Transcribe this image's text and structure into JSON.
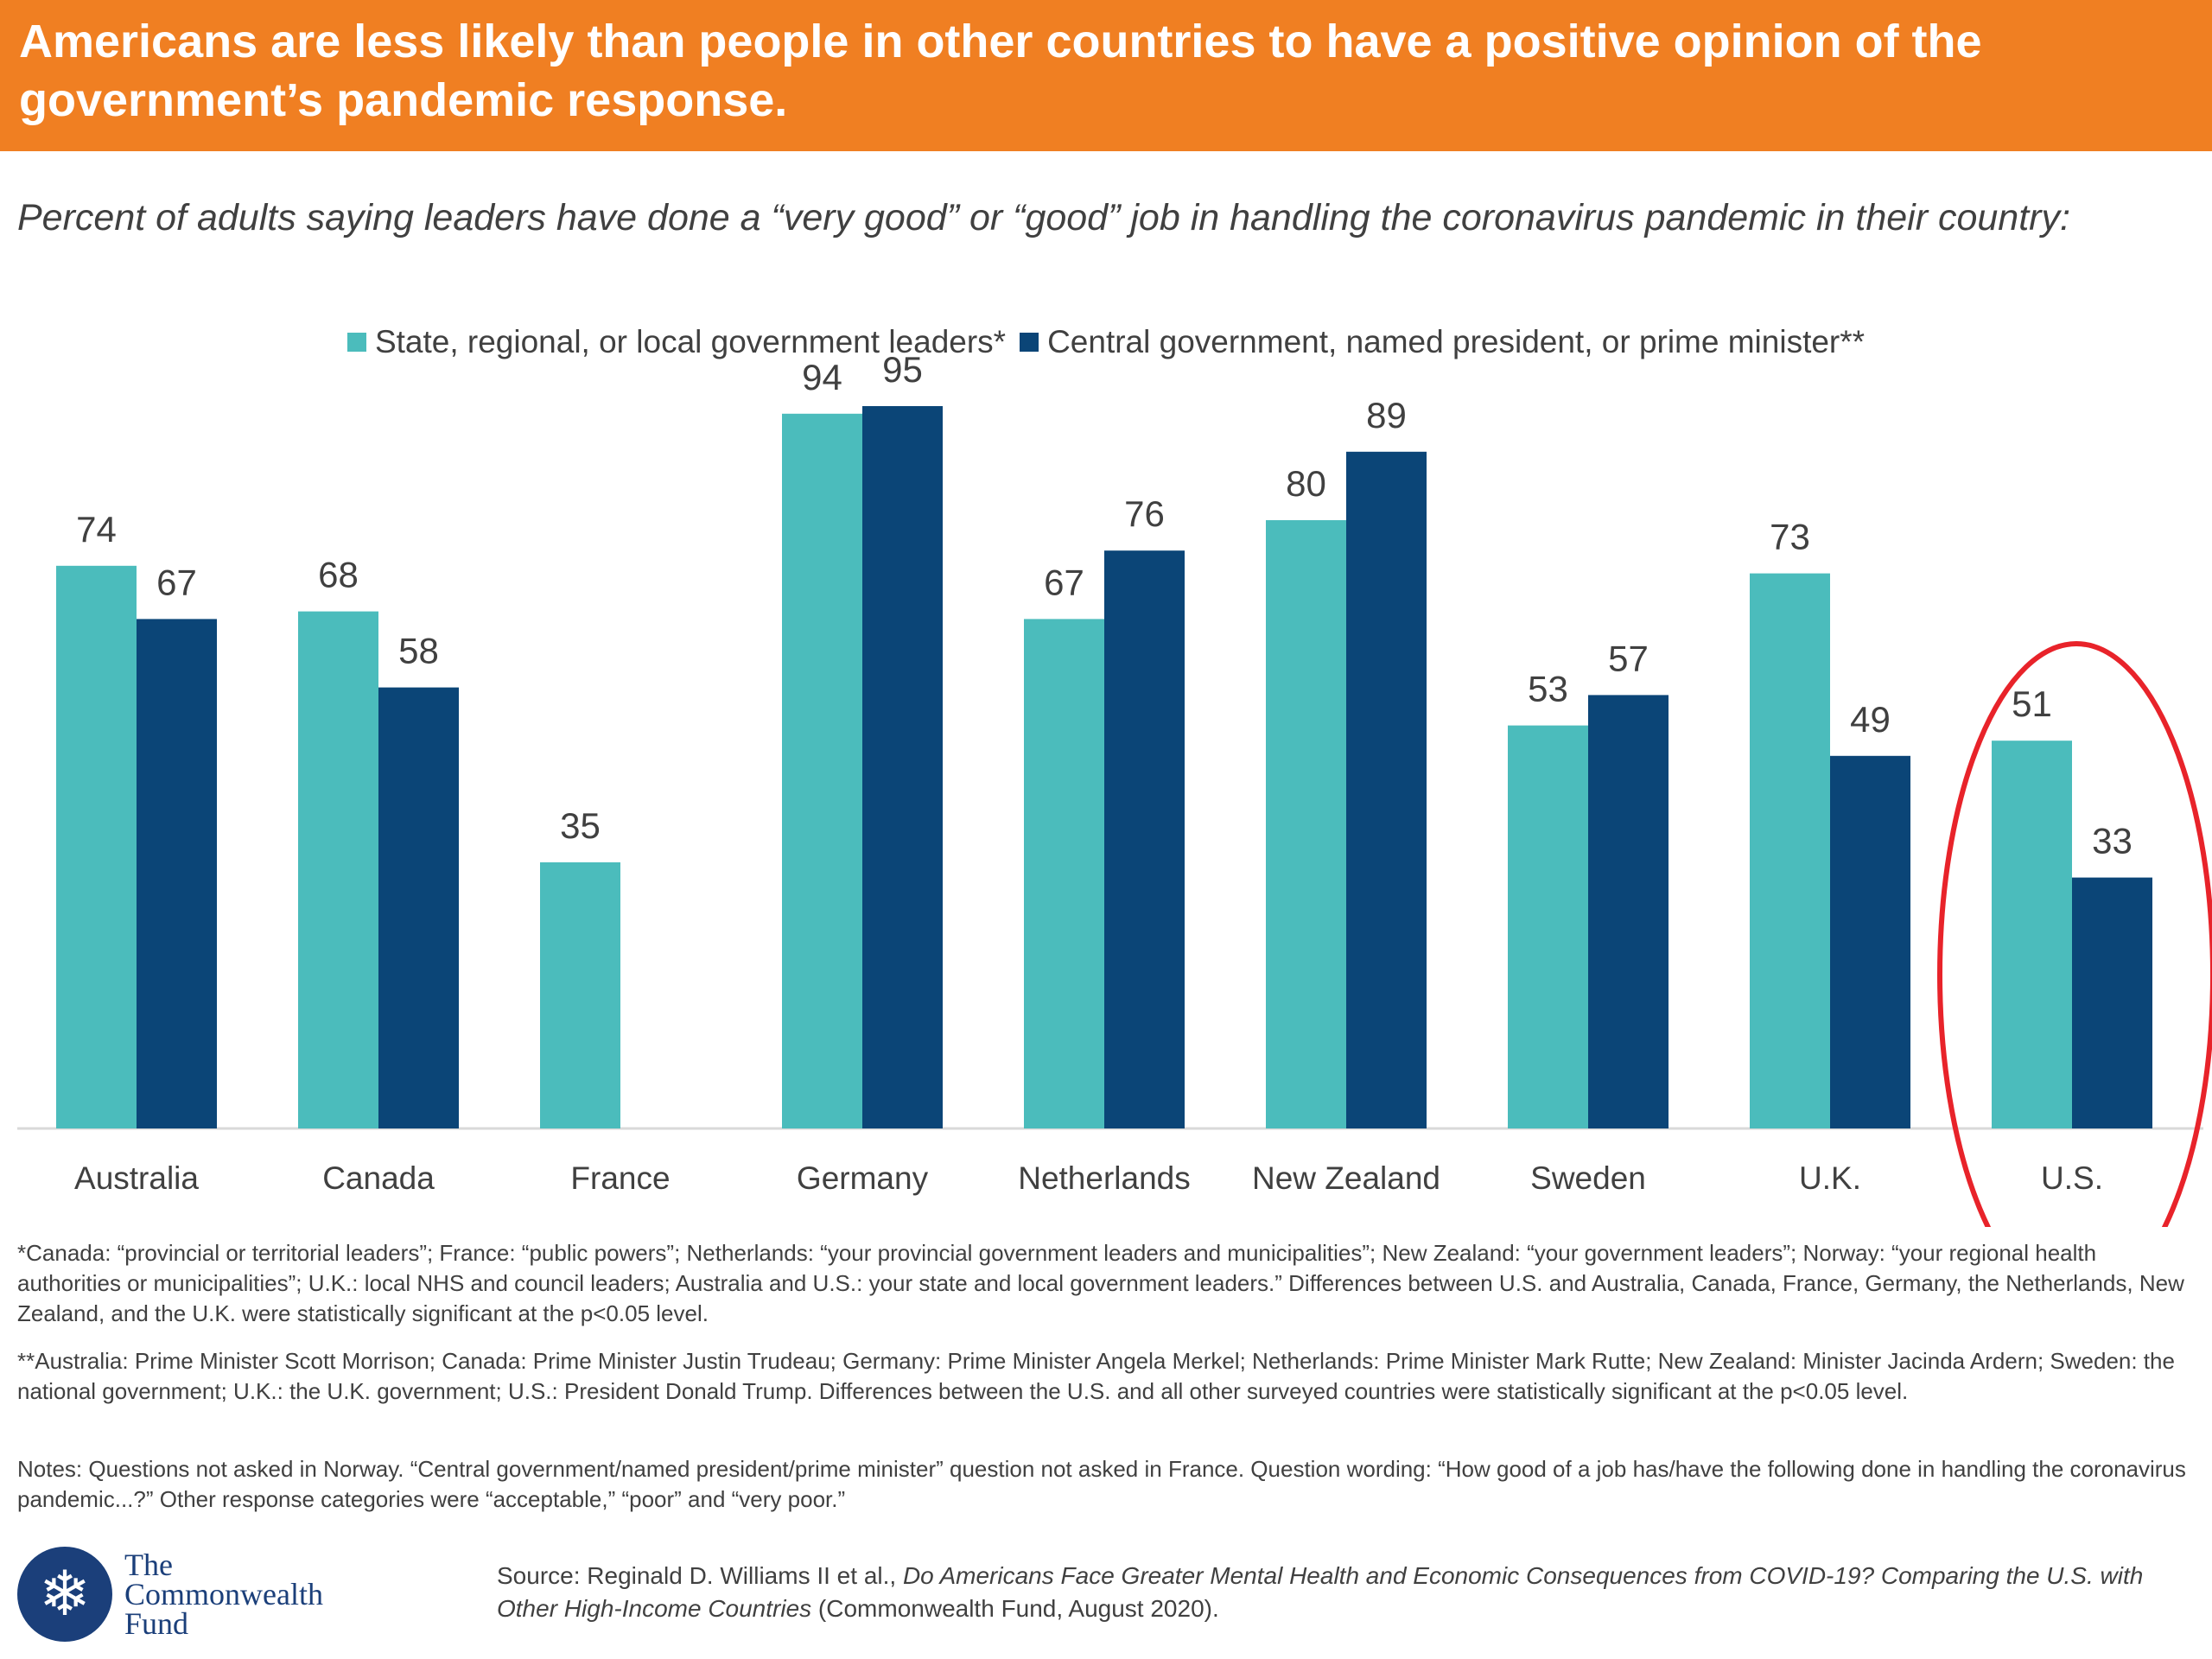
{
  "banner": {
    "title_line1": "Americans are less likely than people in other countries to have a positive opinion of the",
    "title_line2": "government’s pandemic response."
  },
  "subtitle": "Percent of adults saying leaders have done a “very good” or “good” job in handling the coronavirus pandemic in their country:",
  "colors": {
    "banner": "#f07f22",
    "teal": "#4bbcbc",
    "navy": "#0b4577",
    "highlight": "#e8232a"
  },
  "chart_data": {
    "type": "bar",
    "categories": [
      "Australia",
      "Canada",
      "France",
      "Germany",
      "Netherlands",
      "New Zealand",
      "Sweden",
      "U.K.",
      "U.S."
    ],
    "series": [
      {
        "name": "State, regional, or local government leaders*",
        "color": "#4bbcbc",
        "values": [
          74,
          68,
          35,
          94,
          67,
          80,
          53,
          73,
          51
        ]
      },
      {
        "name": "Central government, named president, or prime minister**",
        "color": "#0b4577",
        "values": [
          67,
          58,
          null,
          95,
          76,
          89,
          57,
          49,
          33
        ]
      }
    ],
    "ylim": [
      0,
      100
    ],
    "grid": false,
    "legend_position": "top-center",
    "highlight_category": "U.S."
  },
  "notes": {
    "note1": "*Canada: “provincial or territorial leaders”; France: “public powers”; Netherlands: “your provincial government leaders and municipalities”; New Zealand: “your government leaders”; Norway: “your regional health authorities or municipalities”; U.K.: local NHS and council leaders; Australia and U.S.: your state and local government leaders.” Differences between U.S. and Australia, Canada, France, Germany, the Netherlands, New Zealand, and the U.K. were statistically significant at the p<0.05 level.",
    "note2": "**Australia: Prime Minister Scott Morrison; Canada: Prime Minister Justin Trudeau; Germany: Prime Minister Angela Merkel; Netherlands: Prime Minister Mark Rutte; New Zealand: Minister Jacinda Ardern; Sweden: the national government; U.K.: the U.K. government; U.S.: President Donald Trump. Differences between the U.S. and all other surveyed countries were  statistically significant at the p<0.05 level.",
    "note3": "Notes: Questions not asked in Norway. “Central government/named president/prime minister” question not asked in France. Question wording: “How good of a job has/have the following done in handling the coronavirus pandemic...?” Other response categories were “acceptable,” “poor” and “very poor.”"
  },
  "logo": {
    "line1": "The",
    "line2": "Commonwealth",
    "line3": "Fund",
    "icon": "snowflake-icon"
  },
  "source": {
    "prefix": "Source: Reginald D. Williams II et al., ",
    "title": "Do Americans Face Greater Mental Health and Economic Consequences from COVID-19? Comparing the U.S. with Other High-Income Countries",
    "suffix": " (Commonwealth Fund, August 2020)."
  }
}
